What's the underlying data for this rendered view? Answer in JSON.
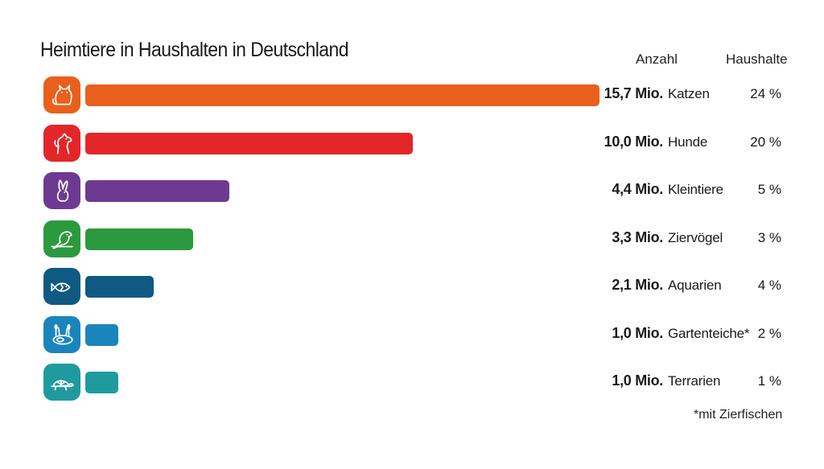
{
  "chart_data": {
    "type": "bar",
    "title": "Heimtiere in Haushalten in Deutschland",
    "column_headers": {
      "count": "Anzahl",
      "households": "Haushalte"
    },
    "unit": "Mio.",
    "categories": [
      "Katzen",
      "Hunde",
      "Kleintiere",
      "Ziervögel",
      "Aquarien",
      "Gartenteiche*",
      "Terrarien"
    ],
    "values": [
      15.7,
      10.0,
      4.4,
      3.3,
      2.1,
      1.0,
      1.0
    ],
    "value_labels": [
      "15,7 Mio.",
      "10,0 Mio.",
      "4,4 Mio.",
      "3,3 Mio.",
      "2,1 Mio.",
      "1,0 Mio.",
      "1,0 Mio."
    ],
    "household_labels": [
      "24 %",
      "20 %",
      "5 %",
      "3 %",
      "4 %",
      "2 %",
      "1 %"
    ],
    "household_values": [
      24,
      20,
      5,
      3,
      4,
      2,
      1
    ],
    "colors": [
      "#e8601c",
      "#e3262a",
      "#6e3a91",
      "#2b9a3e",
      "#0f5a82",
      "#1a85bd",
      "#1f9a9f"
    ],
    "icons": [
      "cat-icon",
      "dog-icon",
      "rabbit-icon",
      "parrot-icon",
      "fish-icon",
      "pond-icon",
      "turtle-icon"
    ],
    "footnote": "*mit Zierfischen"
  }
}
